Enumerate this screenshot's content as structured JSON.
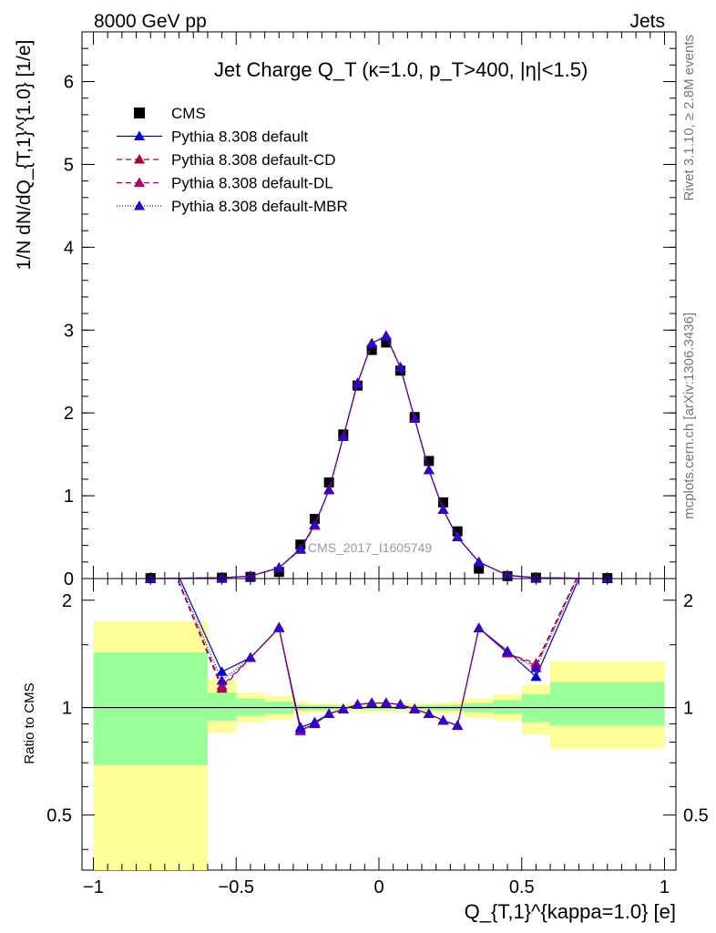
{
  "header": {
    "left": "8000 GeV pp",
    "right": "Jets"
  },
  "side_text": {
    "rivet": "Rivet 3.1.10, ≥ 2.8M events",
    "mcplots": "mcplots.cern.ch [arXiv:1306.3436]"
  },
  "watermark": "CMS_2017_I1605749",
  "colors": {
    "cms": "#000000",
    "default": "#0000dd",
    "default_cd": "#aa0033",
    "default_dl": "#aa0066",
    "default_mbr": "#3300cc",
    "band_outer": "#ffff99",
    "band_inner": "#99ff99"
  },
  "chart_data": [
    {
      "type": "scatter",
      "panel": "main",
      "title": "Jet Charge Q_T (κ=1.0, p_T>400, |η|<1.5)",
      "ylabel": "1/N dN/dQ_{T,1}^{1.0} [1/e]",
      "xlabel": "",
      "xlim": [
        -1.04,
        1.04
      ],
      "ylim": [
        0,
        6.6
      ],
      "yticks": [
        0,
        1,
        2,
        3,
        4,
        5,
        6
      ],
      "legend_position": "top-left",
      "x": [
        -0.8,
        -0.55,
        -0.45,
        -0.35,
        -0.275,
        -0.225,
        -0.175,
        -0.125,
        -0.075,
        -0.025,
        0.025,
        0.075,
        0.125,
        0.175,
        0.225,
        0.275,
        0.35,
        0.45,
        0.55,
        0.8
      ],
      "series": [
        {
          "name": "CMS",
          "marker": "square",
          "y": [
            0.005,
            0.01,
            0.02,
            0.08,
            0.41,
            0.72,
            1.16,
            1.74,
            2.33,
            2.76,
            2.85,
            2.51,
            1.95,
            1.42,
            0.92,
            0.57,
            0.12,
            0.03,
            0.01,
            0.005
          ]
        },
        {
          "name": "Pythia 8.308 default",
          "marker": "triangle",
          "dash": "",
          "y": [
            0.0,
            0.01,
            0.03,
            0.13,
            0.36,
            0.65,
            1.07,
            1.71,
            2.36,
            2.84,
            2.93,
            2.55,
            1.93,
            1.31,
            0.83,
            0.5,
            0.2,
            0.04,
            0.01,
            0.0
          ]
        },
        {
          "name": "Pythia 8.308 default-CD",
          "marker": "triangle",
          "dash": "6,4",
          "y": [
            0.0,
            0.01,
            0.03,
            0.13,
            0.35,
            0.64,
            1.07,
            1.71,
            2.36,
            2.84,
            2.93,
            2.55,
            1.93,
            1.31,
            0.83,
            0.5,
            0.2,
            0.04,
            0.01,
            0.0
          ]
        },
        {
          "name": "Pythia 8.308 default-DL",
          "marker": "triangle",
          "dash": "6,4",
          "y": [
            0.0,
            0.01,
            0.03,
            0.13,
            0.35,
            0.64,
            1.07,
            1.71,
            2.36,
            2.84,
            2.93,
            2.55,
            1.93,
            1.31,
            0.83,
            0.5,
            0.2,
            0.04,
            0.01,
            0.0
          ]
        },
        {
          "name": "Pythia 8.308 default-MBR",
          "marker": "triangle",
          "dash": "1,2",
          "y": [
            0.0,
            0.01,
            0.03,
            0.13,
            0.35,
            0.65,
            1.07,
            1.71,
            2.36,
            2.84,
            2.93,
            2.55,
            1.93,
            1.31,
            0.83,
            0.5,
            0.2,
            0.04,
            0.01,
            0.0
          ]
        }
      ]
    },
    {
      "type": "line",
      "panel": "ratio",
      "ylabel": "Ratio to CMS",
      "xlabel": "Q_{T,1}^{kappa=1.0} [e]",
      "xlim": [
        -1.04,
        1.04
      ],
      "ylim": [
        0.35,
        2.3
      ],
      "yscale": "log",
      "yticks": [
        0.5,
        1,
        2
      ],
      "xticks": [
        -1,
        -0.5,
        0,
        0.5,
        1
      ],
      "reference_line": 1,
      "bands": [
        {
          "xlo": -1.0,
          "xhi": -0.6,
          "outer": [
            0.35,
            1.75
          ],
          "inner": [
            0.69,
            1.43
          ]
        },
        {
          "xlo": -0.6,
          "xhi": -0.5,
          "outer": [
            0.85,
            1.2
          ],
          "inner": [
            0.92,
            1.1
          ]
        },
        {
          "xlo": -0.5,
          "xhi": -0.4,
          "outer": [
            0.91,
            1.1
          ],
          "inner": [
            0.95,
            1.06
          ]
        },
        {
          "xlo": -0.4,
          "xhi": -0.3,
          "outer": [
            0.93,
            1.08
          ],
          "inner": [
            0.96,
            1.04
          ]
        },
        {
          "xlo": -0.3,
          "xhi": -0.25,
          "outer": [
            0.96,
            1.04
          ],
          "inner": [
            0.98,
            1.02
          ]
        },
        {
          "xlo": -0.25,
          "xhi": -0.2,
          "outer": [
            0.97,
            1.03
          ],
          "inner": [
            0.985,
            1.015
          ]
        },
        {
          "xlo": -0.2,
          "xhi": -0.15,
          "outer": [
            0.97,
            1.03
          ],
          "inner": [
            0.985,
            1.015
          ]
        },
        {
          "xlo": -0.15,
          "xhi": -0.1,
          "outer": [
            0.975,
            1.025
          ],
          "inner": [
            0.988,
            1.012
          ]
        },
        {
          "xlo": -0.1,
          "xhi": -0.05,
          "outer": [
            0.975,
            1.025
          ],
          "inner": [
            0.988,
            1.012
          ]
        },
        {
          "xlo": -0.05,
          "xhi": 0.0,
          "outer": [
            0.975,
            1.025
          ],
          "inner": [
            0.988,
            1.012
          ]
        },
        {
          "xlo": 0.0,
          "xhi": 0.05,
          "outer": [
            0.975,
            1.025
          ],
          "inner": [
            0.988,
            1.012
          ]
        },
        {
          "xlo": 0.05,
          "xhi": 0.1,
          "outer": [
            0.975,
            1.025
          ],
          "inner": [
            0.988,
            1.012
          ]
        },
        {
          "xlo": 0.1,
          "xhi": 0.15,
          "outer": [
            0.975,
            1.025
          ],
          "inner": [
            0.988,
            1.012
          ]
        },
        {
          "xlo": 0.15,
          "xhi": 0.2,
          "outer": [
            0.97,
            1.03
          ],
          "inner": [
            0.985,
            1.015
          ]
        },
        {
          "xlo": 0.2,
          "xhi": 0.25,
          "outer": [
            0.965,
            1.035
          ],
          "inner": [
            0.982,
            1.018
          ]
        },
        {
          "xlo": 0.25,
          "xhi": 0.3,
          "outer": [
            0.96,
            1.04
          ],
          "inner": [
            0.98,
            1.02
          ]
        },
        {
          "xlo": 0.3,
          "xhi": 0.4,
          "outer": [
            0.94,
            1.06
          ],
          "inner": [
            0.97,
            1.03
          ]
        },
        {
          "xlo": 0.4,
          "xhi": 0.5,
          "outer": [
            0.92,
            1.09
          ],
          "inner": [
            0.96,
            1.05
          ]
        },
        {
          "xlo": 0.5,
          "xhi": 0.6,
          "outer": [
            0.84,
            1.16
          ],
          "inner": [
            0.91,
            1.09
          ]
        },
        {
          "xlo": 0.6,
          "xhi": 1.0,
          "outer": [
            0.77,
            1.35
          ],
          "inner": [
            0.89,
            1.18
          ]
        }
      ],
      "x": [
        -0.8,
        -0.55,
        -0.45,
        -0.35,
        -0.275,
        -0.225,
        -0.175,
        -0.125,
        -0.075,
        -0.025,
        0.025,
        0.075,
        0.125,
        0.175,
        0.225,
        0.275,
        0.35,
        0.45,
        0.55,
        0.8
      ],
      "series": [
        {
          "name": "Pythia 8.308 default",
          "dash": "",
          "y": [
            3.5,
            1.26,
            1.38,
            1.67,
            0.88,
            0.91,
            0.96,
            0.99,
            1.02,
            1.03,
            1.03,
            1.02,
            0.99,
            0.96,
            0.92,
            0.89,
            1.67,
            1.44,
            1.22,
            3.5
          ]
        },
        {
          "name": "Pythia 8.308 default-CD",
          "dash": "6,4",
          "y": [
            3.5,
            1.13,
            1.38,
            1.67,
            0.86,
            0.9,
            0.96,
            0.99,
            1.02,
            1.03,
            1.03,
            1.02,
            0.99,
            0.96,
            0.92,
            0.89,
            1.67,
            1.42,
            1.33,
            3.5
          ]
        },
        {
          "name": "Pythia 8.308 default-DL",
          "dash": "6,4",
          "y": [
            3.5,
            1.15,
            1.38,
            1.67,
            0.86,
            0.9,
            0.96,
            0.99,
            1.02,
            1.03,
            1.03,
            1.02,
            0.99,
            0.96,
            0.92,
            0.89,
            1.67,
            1.42,
            1.31,
            3.5
          ]
        },
        {
          "name": "Pythia 8.308 default-MBR",
          "dash": "1,2",
          "y": [
            3.5,
            1.19,
            1.38,
            1.68,
            0.87,
            0.9,
            0.96,
            0.99,
            1.02,
            1.03,
            1.03,
            1.02,
            0.99,
            0.96,
            0.92,
            0.89,
            1.67,
            1.43,
            1.29,
            3.5
          ]
        }
      ]
    }
  ]
}
